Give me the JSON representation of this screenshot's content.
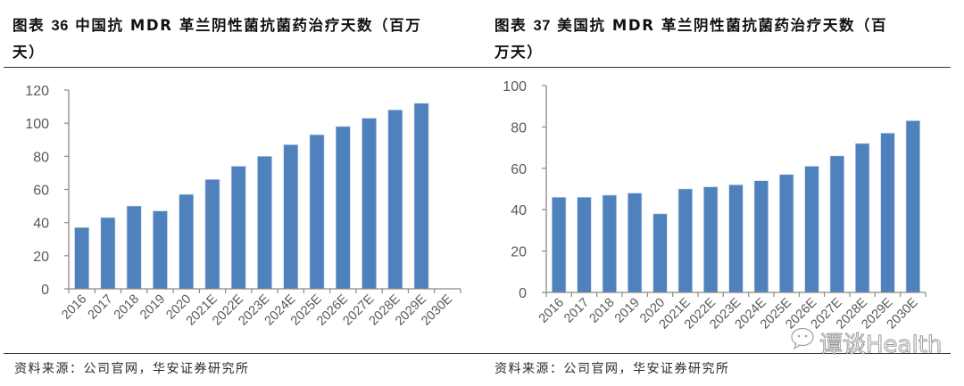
{
  "charts_meta": {
    "bar_color": "#4f81bd",
    "axis_color": "#898989"
  },
  "left": {
    "title_prefix": "图表 ",
    "title_num": "36",
    "title_line1_rest": " 中国抗 MDR 革兰阴性菌抗菌药治疗天数（百万",
    "title_line2": "天）",
    "source": "资料来源：公司官网，华安证券研究所"
  },
  "right": {
    "title_prefix": "图表 ",
    "title_num": "37",
    "title_line1_rest": " 美国抗 MDR 革兰阴性菌抗菌药治疗天数（百",
    "title_line2": "万天）",
    "source": "资料来源：公司官网，华安证券研究所"
  },
  "watermark": {
    "text": "谭谈Health",
    "icon": "wechat-icon"
  },
  "chart_data": [
    {
      "type": "bar",
      "title": "图表 36 中国抗 MDR 革兰阴性菌抗菌药治疗天数（百万天）",
      "xlabel": "",
      "ylabel": "",
      "categories": [
        "2016",
        "2017",
        "2018",
        "2019",
        "2020",
        "2021E",
        "2022E",
        "2023E",
        "2024E",
        "2025E",
        "2026E",
        "2027E",
        "2028E",
        "2029E",
        "2030E"
      ],
      "values": [
        37,
        43,
        50,
        47,
        57,
        66,
        74,
        80,
        87,
        93,
        98,
        103,
        108,
        112,
        null
      ],
      "ylim": [
        0,
        120
      ],
      "yticks": [
        "0",
        "20",
        "40",
        "60",
        "80",
        "100",
        "120"
      ],
      "grid": false,
      "legend": "none"
    },
    {
      "type": "bar",
      "title": "图表 37 美国抗 MDR 革兰阴性菌抗菌药治疗天数（百万天）",
      "xlabel": "",
      "ylabel": "",
      "categories": [
        "2016",
        "2017",
        "2018",
        "2019",
        "2020",
        "2021E",
        "2022E",
        "2023E",
        "2024E",
        "2025E",
        "2026E",
        "2027E",
        "2028E",
        "2029E",
        "2030E"
      ],
      "values": [
        46,
        46,
        47,
        48,
        38,
        50,
        51,
        52,
        54,
        57,
        61,
        66,
        72,
        77,
        83
      ],
      "ylim": [
        0,
        100
      ],
      "yticks": [
        "0",
        "20",
        "40",
        "60",
        "80",
        "100"
      ],
      "grid": false,
      "legend": "none"
    }
  ]
}
